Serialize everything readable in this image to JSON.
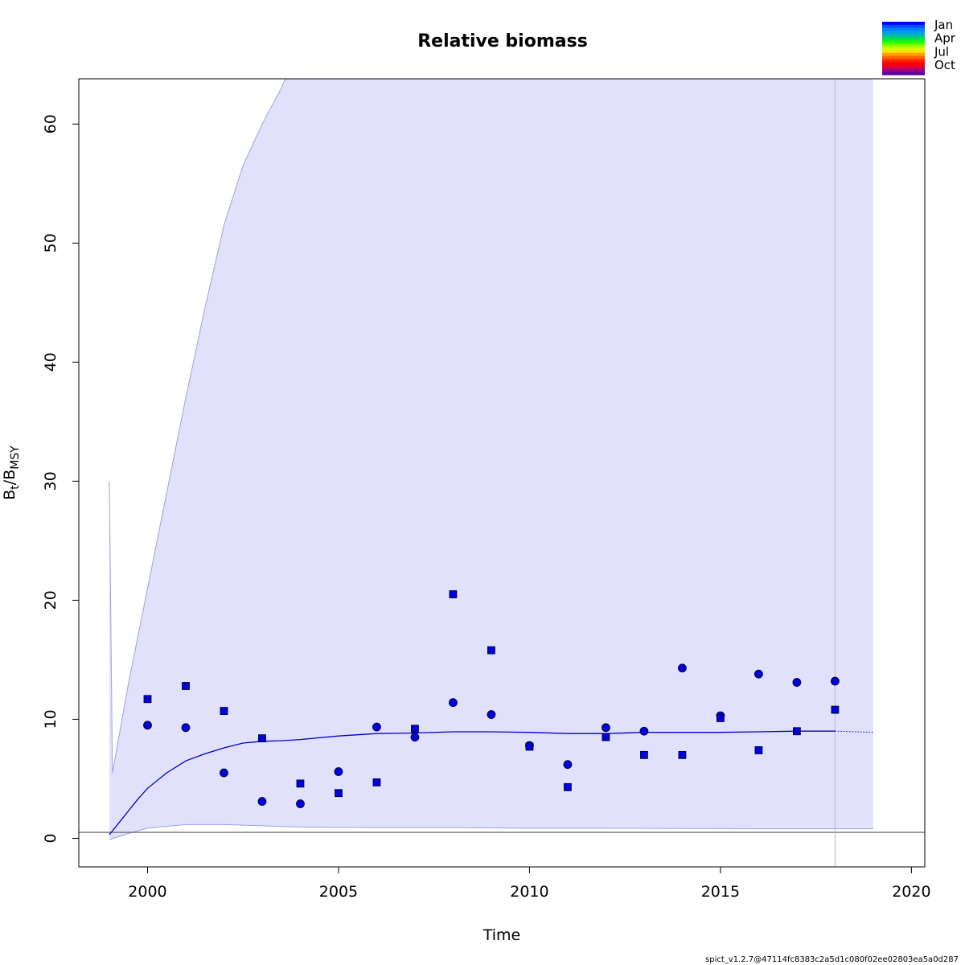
{
  "chart_data": {
    "type": "line",
    "title": "Relative biomass",
    "xlabel": "Time",
    "ylabel_main": "B",
    "ylabel_sub1": "t",
    "ylabel_mid": "/B",
    "ylabel_sub2": "MSY",
    "xlim": [
      1998.2,
      2020.35
    ],
    "ylim": [
      -2.4,
      63.8
    ],
    "x_ticks": [
      2000,
      2005,
      2010,
      2015,
      2020
    ],
    "y_ticks": [
      0,
      10,
      20,
      30,
      40,
      50,
      60
    ],
    "reference_line_y": 0.5,
    "last_observation_x": 2018,
    "colors": {
      "band_fill": "#e1e1fc",
      "band_stroke": "#a0a0e6",
      "line": "#0000cd",
      "point_fill": "#0000dd",
      "reference_line": "#555555",
      "vline": "#bbbbbb"
    },
    "ci_upper": [
      {
        "x": 1999.0,
        "y": 30.0
      },
      {
        "x": 1999.08,
        "y": 5.5
      },
      {
        "x": 1999.5,
        "y": 13.0
      },
      {
        "x": 2000.0,
        "y": 21.0
      },
      {
        "x": 2000.5,
        "y": 29.0
      },
      {
        "x": 2001.0,
        "y": 37.0
      },
      {
        "x": 2001.5,
        "y": 44.5
      },
      {
        "x": 2002.0,
        "y": 51.5
      },
      {
        "x": 2002.5,
        "y": 56.5
      },
      {
        "x": 2003.0,
        "y": 60.0
      },
      {
        "x": 2003.5,
        "y": 63.0
      },
      {
        "x": 2003.7,
        "y": 64.5
      }
    ],
    "ci_lower": [
      {
        "x": 1999.0,
        "y": -0.1
      },
      {
        "x": 1999.5,
        "y": 0.4
      },
      {
        "x": 2000.0,
        "y": 0.85
      },
      {
        "x": 2001.0,
        "y": 1.15
      },
      {
        "x": 2002.0,
        "y": 1.15
      },
      {
        "x": 2003.0,
        "y": 1.05
      },
      {
        "x": 2004.0,
        "y": 0.95
      },
      {
        "x": 2006.0,
        "y": 0.9
      },
      {
        "x": 2008.0,
        "y": 0.9
      },
      {
        "x": 2010.0,
        "y": 0.85
      },
      {
        "x": 2012.0,
        "y": 0.85
      },
      {
        "x": 2014.0,
        "y": 0.82
      },
      {
        "x": 2016.0,
        "y": 0.8
      },
      {
        "x": 2018.0,
        "y": 0.8
      },
      {
        "x": 2019.0,
        "y": 0.8
      }
    ],
    "estimate": [
      {
        "x": 1999.0,
        "y": 0.3
      },
      {
        "x": 1999.25,
        "y": 1.3
      },
      {
        "x": 1999.5,
        "y": 2.3
      },
      {
        "x": 1999.75,
        "y": 3.3
      },
      {
        "x": 2000.0,
        "y": 4.2
      },
      {
        "x": 2000.5,
        "y": 5.5
      },
      {
        "x": 2001.0,
        "y": 6.5
      },
      {
        "x": 2001.5,
        "y": 7.1
      },
      {
        "x": 2002.0,
        "y": 7.6
      },
      {
        "x": 2002.5,
        "y": 8.0
      },
      {
        "x": 2003.0,
        "y": 8.15
      },
      {
        "x": 2003.5,
        "y": 8.2
      },
      {
        "x": 2004.0,
        "y": 8.3
      },
      {
        "x": 2005.0,
        "y": 8.6
      },
      {
        "x": 2006.0,
        "y": 8.8
      },
      {
        "x": 2007.0,
        "y": 8.85
      },
      {
        "x": 2008.0,
        "y": 8.95
      },
      {
        "x": 2009.0,
        "y": 8.95
      },
      {
        "x": 2010.0,
        "y": 8.9
      },
      {
        "x": 2011.0,
        "y": 8.8
      },
      {
        "x": 2012.0,
        "y": 8.8
      },
      {
        "x": 2013.0,
        "y": 8.9
      },
      {
        "x": 2014.0,
        "y": 8.9
      },
      {
        "x": 2015.0,
        "y": 8.9
      },
      {
        "x": 2016.0,
        "y": 8.95
      },
      {
        "x": 2017.0,
        "y": 9.0
      },
      {
        "x": 2018.0,
        "y": 9.0
      }
    ],
    "forecast": [
      {
        "x": 2018.0,
        "y": 9.0
      },
      {
        "x": 2019.0,
        "y": 8.9
      }
    ],
    "index1_circles": [
      {
        "x": 2000,
        "y": 9.5
      },
      {
        "x": 2001,
        "y": 9.3
      },
      {
        "x": 2002,
        "y": 5.5
      },
      {
        "x": 2003,
        "y": 3.1
      },
      {
        "x": 2004,
        "y": 2.9
      },
      {
        "x": 2005,
        "y": 5.6
      },
      {
        "x": 2006,
        "y": 9.35
      },
      {
        "x": 2007,
        "y": 8.5
      },
      {
        "x": 2008,
        "y": 11.4
      },
      {
        "x": 2009,
        "y": 10.4
      },
      {
        "x": 2010,
        "y": 7.8
      },
      {
        "x": 2011,
        "y": 6.2
      },
      {
        "x": 2012,
        "y": 9.3
      },
      {
        "x": 2013,
        "y": 9.0
      },
      {
        "x": 2014,
        "y": 14.3
      },
      {
        "x": 2015,
        "y": 10.3
      },
      {
        "x": 2016,
        "y": 13.8
      },
      {
        "x": 2017,
        "y": 13.1
      },
      {
        "x": 2018,
        "y": 13.2
      }
    ],
    "index2_squares": [
      {
        "x": 2000,
        "y": 11.7
      },
      {
        "x": 2001,
        "y": 12.8
      },
      {
        "x": 2002,
        "y": 10.7
      },
      {
        "x": 2003,
        "y": 8.4
      },
      {
        "x": 2004,
        "y": 4.6
      },
      {
        "x": 2005,
        "y": 3.8
      },
      {
        "x": 2006,
        "y": 4.7
      },
      {
        "x": 2007,
        "y": 9.2
      },
      {
        "x": 2008,
        "y": 20.5
      },
      {
        "x": 2009,
        "y": 15.8
      },
      {
        "x": 2010,
        "y": 7.7
      },
      {
        "x": 2011,
        "y": 4.3
      },
      {
        "x": 2012,
        "y": 8.5
      },
      {
        "x": 2013,
        "y": 7.0
      },
      {
        "x": 2014,
        "y": 7.0
      },
      {
        "x": 2015,
        "y": 10.1
      },
      {
        "x": 2016,
        "y": 7.4
      },
      {
        "x": 2017,
        "y": 9.0
      },
      {
        "x": 2018,
        "y": 10.8
      }
    ],
    "legend": {
      "placement": "top-right",
      "labels": [
        "Jan",
        "Apr",
        "Jul",
        "Oct"
      ],
      "colors": [
        "#0000ff",
        "#0050ff",
        "#0080ff",
        "#00a0e0",
        "#00c0a0",
        "#00e050",
        "#20ff00",
        "#80ff00",
        "#d0ff00",
        "#ffe000",
        "#ffa000",
        "#ff6000",
        "#ff2000",
        "#ff0000",
        "#e00040",
        "#a00080",
        "#6000a0"
      ]
    }
  },
  "footer_text": "spict_v1.2.7@47114fc8383c2a5d1c080f02ee02803ea5a0d287"
}
